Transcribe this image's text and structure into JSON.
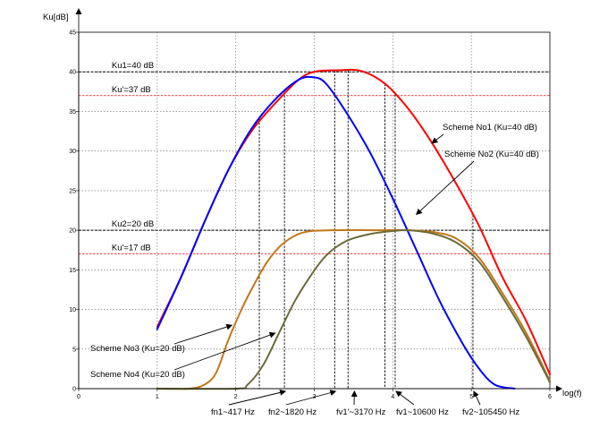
{
  "chart_data": {
    "type": "line",
    "title": "",
    "xlabel": "log(f)",
    "ylabel": "Ku[dB]",
    "xlim": [
      0,
      6
    ],
    "ylim": [
      0,
      45
    ],
    "grid": true,
    "x_ticks": [
      0,
      1,
      2,
      3,
      4,
      5,
      6
    ],
    "y_ticks": [
      0,
      5,
      10,
      15,
      20,
      25,
      30,
      35,
      40,
      45
    ],
    "series": [
      {
        "name": "Scheme No1 (Ku=40 dB)",
        "color": "#ff0000",
        "points": [
          [
            1.0,
            7.8
          ],
          [
            1.3,
            14
          ],
          [
            1.6,
            21
          ],
          [
            1.9,
            27.5
          ],
          [
            2.2,
            32.5
          ],
          [
            2.5,
            36
          ],
          [
            2.8,
            39
          ],
          [
            3.0,
            40
          ],
          [
            3.3,
            40.2
          ],
          [
            3.6,
            40.1
          ],
          [
            3.9,
            38.5
          ],
          [
            4.2,
            35.3
          ],
          [
            4.5,
            31
          ],
          [
            4.8,
            26
          ],
          [
            5.1,
            20.5
          ],
          [
            5.4,
            14
          ],
          [
            5.7,
            8.5
          ],
          [
            6.0,
            1.8
          ]
        ]
      },
      {
        "name": "Scheme No2 (Ku=40 dB)",
        "color": "#0000ff",
        "points": [
          [
            1.0,
            7.5
          ],
          [
            1.3,
            14
          ],
          [
            1.6,
            21
          ],
          [
            1.9,
            27.5
          ],
          [
            2.2,
            32.8
          ],
          [
            2.5,
            36.5
          ],
          [
            2.8,
            39
          ],
          [
            3.0,
            39.3
          ],
          [
            3.15,
            38.5
          ],
          [
            3.4,
            35
          ],
          [
            3.7,
            30
          ],
          [
            4.0,
            24
          ],
          [
            4.3,
            17.5
          ],
          [
            4.6,
            11
          ],
          [
            4.9,
            5.5
          ],
          [
            5.1,
            2.5
          ],
          [
            5.3,
            0.5
          ],
          [
            5.55,
            0
          ]
        ]
      },
      {
        "name": "Scheme No3 (Ku=20 dB)",
        "color": "#c07818",
        "points": [
          [
            1.0,
            0
          ],
          [
            1.4,
            0
          ],
          [
            1.6,
            0.5
          ],
          [
            1.75,
            2
          ],
          [
            1.9,
            6
          ],
          [
            2.05,
            9.5
          ],
          [
            2.2,
            12.5
          ],
          [
            2.4,
            16
          ],
          [
            2.6,
            18.3
          ],
          [
            2.85,
            19.7
          ],
          [
            3.2,
            20
          ],
          [
            3.8,
            20
          ],
          [
            4.2,
            20
          ],
          [
            4.5,
            19.8
          ],
          [
            4.8,
            19
          ],
          [
            5.1,
            16.5
          ],
          [
            5.4,
            12
          ],
          [
            5.7,
            7
          ],
          [
            6.0,
            1
          ]
        ]
      },
      {
        "name": "Scheme No4 (Ku=20 dB)",
        "color": "#6b6b3a",
        "points": [
          [
            1.0,
            0
          ],
          [
            2.0,
            0
          ],
          [
            2.15,
            0.5
          ],
          [
            2.35,
            3
          ],
          [
            2.55,
            7
          ],
          [
            2.75,
            11
          ],
          [
            2.95,
            14.2
          ],
          [
            3.15,
            16.8
          ],
          [
            3.4,
            18.6
          ],
          [
            3.7,
            19.5
          ],
          [
            4.0,
            19.9
          ],
          [
            4.2,
            20
          ],
          [
            4.5,
            19.6
          ],
          [
            4.8,
            18.5
          ],
          [
            5.1,
            16
          ],
          [
            5.4,
            11.5
          ],
          [
            5.7,
            6.5
          ],
          [
            6.0,
            0.8
          ]
        ]
      }
    ],
    "reference_lines": [
      {
        "label": "Ku1=40 dB",
        "y": 40,
        "color": "#000000"
      },
      {
        "label": "Ku'=37 dB",
        "y": 37,
        "color": "#ff0000"
      },
      {
        "label": "Ku2=20 dB",
        "y": 20,
        "color": "#000000"
      },
      {
        "label": "Ku'=17 dB",
        "y": 17,
        "color": "#ff0000"
      }
    ],
    "frequency_markers": [
      {
        "label": "fn1~417 Hz",
        "x": 2.62
      },
      {
        "label": "fn2~1820 Hz",
        "x": 3.26
      },
      {
        "label": "fv1'~3170 Hz",
        "x": 3.5
      },
      {
        "label": "fv1~10600 Hz",
        "x": 4.03
      },
      {
        "label": "fv2~105450 Hz",
        "x": 5.02
      }
    ],
    "vertical_drops": [
      2.3,
      2.62,
      3.26,
      3.43,
      3.9,
      4.03,
      5.02
    ],
    "annotations": [
      {
        "text": "Scheme No1 (Ku=40 dB)",
        "target": [
          4.5,
          31
        ]
      },
      {
        "text": "Scheme No2 (Ku=40 dB)",
        "target": [
          4.3,
          22
        ]
      },
      {
        "text": "Scheme No3 (Ku=20 dB)",
        "target": [
          1.95,
          8
        ]
      },
      {
        "text": "Scheme No4 (Ku=20 dB)",
        "target": [
          2.5,
          7
        ]
      }
    ]
  }
}
